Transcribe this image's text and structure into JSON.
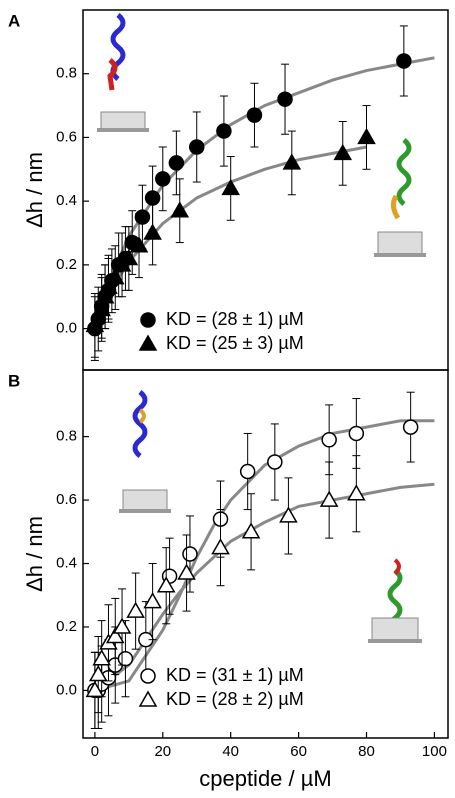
{
  "chart_data": [
    {
      "type": "scatter",
      "panel": "A",
      "xlim": [
        -3.5,
        104
      ],
      "ylim": [
        -0.13,
        1.0
      ],
      "yticks": [
        {
          "value": 0,
          "label": "0.0"
        },
        {
          "value": 0.2,
          "label": "0.2"
        },
        {
          "value": 0.4,
          "label": "0.4"
        },
        {
          "value": 0.6,
          "label": "0.6"
        },
        {
          "value": 0.8,
          "label": "0.8"
        }
      ],
      "ylabel": "Δh / nm",
      "legend": "lower center",
      "series": [
        {
          "name": "KD = (28 ± 1) µM",
          "marker": "circle",
          "filled": true,
          "color": "#000000",
          "x": [
            0,
            1,
            2,
            3,
            4,
            5,
            7,
            9,
            11,
            14,
            17,
            20,
            24,
            30,
            38,
            47,
            56,
            91
          ],
          "values": [
            0,
            0.03,
            0.07,
            0.1,
            0.12,
            0.15,
            0.2,
            0.22,
            0.27,
            0.35,
            0.41,
            0.47,
            0.52,
            0.57,
            0.62,
            0.67,
            0.72,
            0.84
          ],
          "errors": [
            0.1,
            0.1,
            0.1,
            0.1,
            0.1,
            0.1,
            0.1,
            0.1,
            0.1,
            0.1,
            0.1,
            0.1,
            0.1,
            0.11,
            0.11,
            0.1,
            0.11,
            0.11
          ]
        },
        {
          "name": "KD = (25 ± 3) µM",
          "marker": "triangle",
          "filled": true,
          "color": "#000000",
          "x": [
            0,
            2,
            3,
            4,
            6,
            8,
            10,
            13,
            17,
            25,
            40,
            58,
            73,
            80
          ],
          "values": [
            0.01,
            0.06,
            0.1,
            0.13,
            0.16,
            0.2,
            0.22,
            0.26,
            0.3,
            0.37,
            0.44,
            0.52,
            0.55,
            0.6
          ],
          "errors": [
            0.1,
            0.1,
            0.1,
            0.1,
            0.1,
            0.1,
            0.1,
            0.1,
            0.1,
            0.1,
            0.1,
            0.1,
            0.1,
            0.1
          ]
        }
      ],
      "fits": [
        {
          "color": "#888888",
          "x": [
            0,
            5,
            10,
            20,
            30,
            40,
            50,
            60,
            70,
            80,
            90,
            100
          ],
          "values": [
            0,
            0.165,
            0.29,
            0.45,
            0.56,
            0.64,
            0.7,
            0.74,
            0.78,
            0.81,
            0.83,
            0.85
          ]
        },
        {
          "color": "#888888",
          "x": [
            0,
            5,
            10,
            20,
            30,
            40,
            50,
            60,
            70,
            80
          ],
          "values": [
            0,
            0.125,
            0.21,
            0.33,
            0.41,
            0.46,
            0.5,
            0.53,
            0.55,
            0.57
          ]
        }
      ]
    },
    {
      "type": "scatter",
      "panel": "B",
      "xlim": [
        -3.5,
        104
      ],
      "ylim": [
        -0.15,
        1.01
      ],
      "xticks": [
        0,
        20,
        40,
        60,
        80,
        100
      ],
      "yticks": [
        {
          "value": 0,
          "label": "0.0"
        },
        {
          "value": 0.2,
          "label": "0.2"
        },
        {
          "value": 0.4,
          "label": "0.4"
        },
        {
          "value": 0.6,
          "label": "0.6"
        },
        {
          "value": 0.8,
          "label": "0.8"
        }
      ],
      "xlabel": "cpeptide / µM",
      "ylabel": "Δh / nm",
      "legend": "lower center",
      "series": [
        {
          "name": "KD = (31 ± 1) µM",
          "marker": "circle",
          "filled": false,
          "color": "#000000",
          "x": [
            0,
            1,
            2,
            4,
            6,
            9,
            15,
            22,
            28,
            37,
            45,
            53,
            69,
            77,
            93
          ],
          "values": [
            0,
            0,
            0.02,
            0.04,
            0.08,
            0.1,
            0.16,
            0.36,
            0.43,
            0.54,
            0.69,
            0.72,
            0.79,
            0.81,
            0.83
          ],
          "errors": [
            0.12,
            0.12,
            0.12,
            0.12,
            0.12,
            0.12,
            0.12,
            0.12,
            0.12,
            0.12,
            0.12,
            0.12,
            0.11,
            0.11,
            0.11
          ]
        },
        {
          "name": "KD = (28 ± 2) µM",
          "marker": "triangle",
          "filled": false,
          "color": "#000000",
          "x": [
            0,
            1,
            2,
            4,
            6,
            8,
            12,
            17,
            21,
            27,
            37,
            46,
            57,
            69,
            77
          ],
          "values": [
            0,
            0.05,
            0.1,
            0.15,
            0.17,
            0.2,
            0.25,
            0.28,
            0.33,
            0.37,
            0.45,
            0.5,
            0.55,
            0.6,
            0.62
          ],
          "errors": [
            0.12,
            0.12,
            0.12,
            0.12,
            0.12,
            0.12,
            0.12,
            0.12,
            0.12,
            0.12,
            0.12,
            0.12,
            0.12,
            0.12,
            0.12
          ]
        }
      ],
      "fits": [
        {
          "color": "#888888",
          "x": [
            0,
            10,
            20,
            25,
            30,
            35,
            40,
            50,
            60,
            70,
            80,
            90,
            100
          ],
          "values": [
            0,
            0.03,
            0.19,
            0.3,
            0.42,
            0.52,
            0.6,
            0.71,
            0.77,
            0.81,
            0.83,
            0.85,
            0.85
          ]
        },
        {
          "color": "#888888",
          "x": [
            0,
            10,
            20,
            25,
            30,
            40,
            50,
            60,
            70,
            80,
            90,
            100
          ],
          "values": [
            0,
            0.08,
            0.24,
            0.31,
            0.37,
            0.47,
            0.53,
            0.58,
            0.6,
            0.62,
            0.64,
            0.65
          ]
        }
      ]
    }
  ]
}
